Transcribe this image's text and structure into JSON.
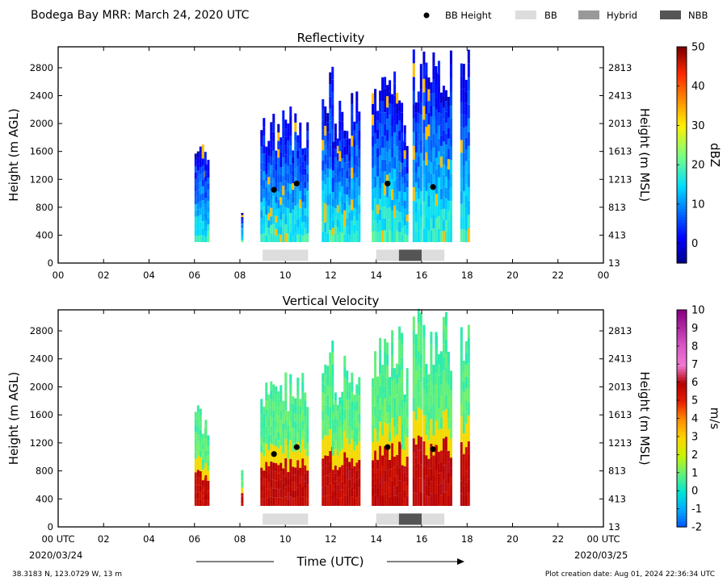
{
  "header": {
    "title": "Bodega Bay MRR:  March 24, 2020 UTC",
    "legend": [
      {
        "label": "BB Height",
        "marker": "dot",
        "color": "#000000"
      },
      {
        "label": "BB",
        "marker": "box",
        "color": "#dddddd"
      },
      {
        "label": "Hybrid",
        "marker": "box",
        "color": "#999999"
      },
      {
        "label": "NBB",
        "marker": "box",
        "color": "#555555"
      }
    ]
  },
  "footer": {
    "xlabel": "Time (UTC)",
    "start_date": "2020/03/24",
    "end_date": "2020/03/25",
    "location": "38.3183 N, 123.0729 W, 13 m",
    "created": "Plot creation date: Aug 01, 2024 22:36:34 UTC"
  },
  "colors": {
    "bb": "#dddddd",
    "hybrid": "#999999",
    "nbb": "#555555",
    "bb_height": "#000000"
  },
  "chart_data": [
    {
      "type": "heatmap",
      "title": "Reflectivity",
      "ylabel": "Height (m AGL)",
      "ylabel_right": "Height (m MSL)",
      "colorbar_label": "dBZ",
      "colorbar_ticks": [
        "0",
        "10",
        "20",
        "30",
        "40",
        "50"
      ],
      "colorbar_range": [
        -5,
        50
      ],
      "colormap": "jet",
      "xlim": [
        0,
        24
      ],
      "ylim": [
        0,
        3100
      ],
      "x_ticks": [
        "00",
        "02",
        "04",
        "06",
        "08",
        "10",
        "12",
        "14",
        "16",
        "18",
        "20",
        "22",
        "00"
      ],
      "y_ticks": [
        "0",
        "400",
        "800",
        "1200",
        "1600",
        "2000",
        "2400",
        "2800"
      ],
      "y_ticks_right": [
        "13",
        "413",
        "813",
        "1213",
        "1613",
        "2013",
        "2413",
        "2813"
      ],
      "bb_height": [
        [
          9.5,
          1050
        ],
        [
          10.5,
          1140
        ],
        [
          14.5,
          1140
        ],
        [
          16.5,
          1090
        ]
      ],
      "bb_type_periods": [
        {
          "type": "BB",
          "start": 9.0,
          "end": 11.0
        },
        {
          "type": "BB",
          "start": 14.0,
          "end": 17.0
        },
        {
          "type": "NBB",
          "start": 15.0,
          "end": 16.0
        }
      ]
    },
    {
      "type": "heatmap",
      "title": "Vertical Velocity",
      "ylabel": "Height (m AGL)",
      "ylabel_right": "Height (m MSL)",
      "colorbar_label": "m/s",
      "colorbar_ticks": [
        "-2",
        "-1",
        "0",
        "1",
        "2",
        "3",
        "4",
        "5",
        "6",
        "7",
        "8",
        "9",
        "10"
      ],
      "colorbar_range": [
        -2,
        10
      ],
      "colormap": "velocity",
      "xlim": [
        0,
        24
      ],
      "ylim": [
        0,
        3100
      ],
      "x_ticks": [
        "00 UTC",
        "02",
        "04",
        "06",
        "08",
        "10",
        "12",
        "14",
        "16",
        "18",
        "20",
        "22",
        "00 UTC"
      ],
      "y_ticks": [
        "0",
        "400",
        "800",
        "1200",
        "1600",
        "2000",
        "2400",
        "2800"
      ],
      "y_ticks_right": [
        "13",
        "413",
        "813",
        "1213",
        "1613",
        "2013",
        "2413",
        "2813"
      ],
      "bb_height": [
        [
          9.5,
          1040
        ],
        [
          10.5,
          1140
        ],
        [
          14.5,
          1140
        ],
        [
          16.5,
          1110
        ]
      ],
      "bb_type_periods": [
        {
          "type": "BB",
          "start": 9.0,
          "end": 11.0
        },
        {
          "type": "BB",
          "start": 14.0,
          "end": 17.0
        },
        {
          "type": "NBB",
          "start": 15.0,
          "end": 16.0
        }
      ]
    }
  ]
}
